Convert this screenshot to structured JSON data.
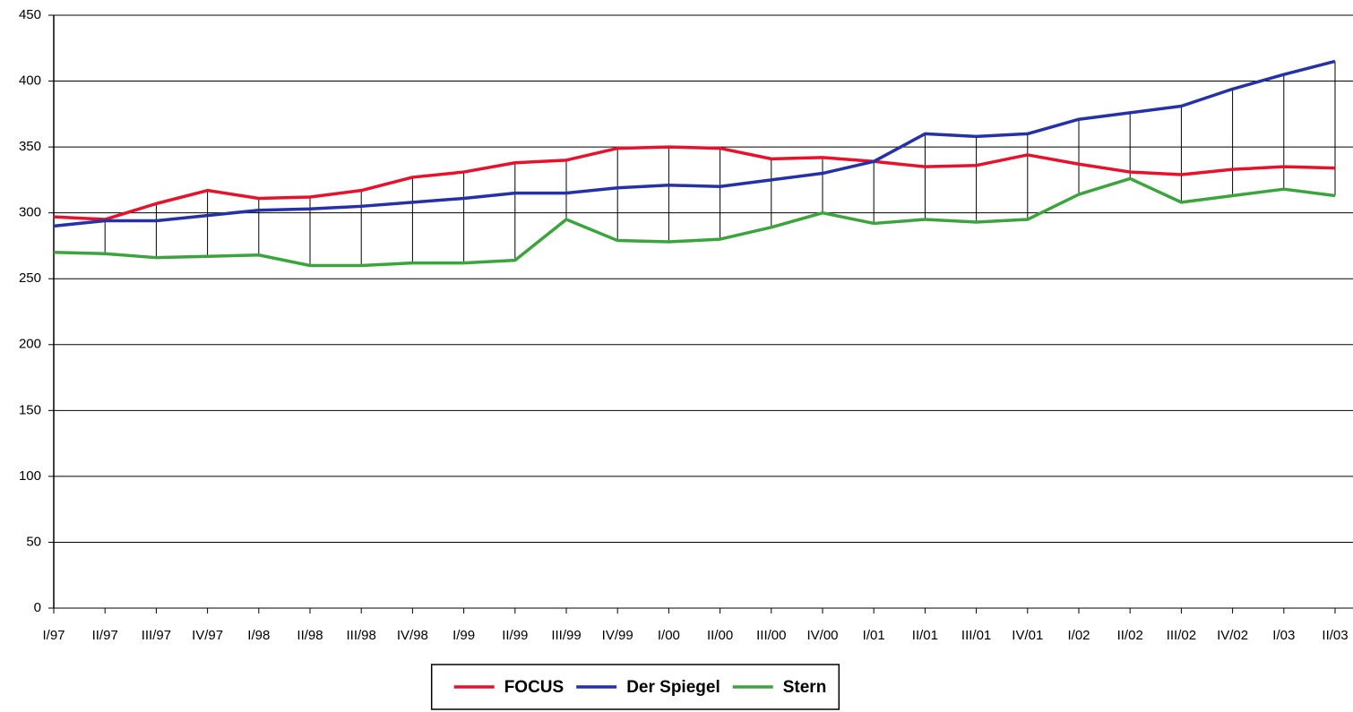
{
  "chart_data": {
    "type": "line",
    "categories": [
      "I/97",
      "II/97",
      "III/97",
      "IV/97",
      "I/98",
      "II/98",
      "III/98",
      "IV/98",
      "I/99",
      "II/99",
      "III/99",
      "IV/99",
      "I/00",
      "II/00",
      "III/00",
      "IV/00",
      "I/01",
      "II/01",
      "III/01",
      "IV/01",
      "I/02",
      "II/02",
      "III/02",
      "IV/02",
      "I/03",
      "II/03"
    ],
    "series": [
      {
        "name": "FOCUS",
        "color": "#e8102a",
        "values": [
          297,
          295,
          307,
          317,
          311,
          312,
          317,
          327,
          331,
          338,
          340,
          349,
          350,
          349,
          341,
          342,
          339,
          335,
          336,
          344,
          337,
          331,
          329,
          333,
          335,
          334
        ]
      },
      {
        "name": "Der Spiegel",
        "color": "#2431a8",
        "values": [
          290,
          294,
          294,
          298,
          302,
          303,
          305,
          308,
          311,
          315,
          315,
          319,
          321,
          320,
          325,
          330,
          339,
          360,
          358,
          360,
          371,
          376,
          381,
          394,
          405,
          415
        ]
      },
      {
        "name": "Stern",
        "color": "#3aa53a",
        "values": [
          270,
          269,
          266,
          267,
          268,
          260,
          260,
          262,
          262,
          264,
          295,
          279,
          278,
          280,
          289,
          300,
          292,
          295,
          293,
          295,
          314,
          326,
          308,
          313,
          318,
          313
        ]
      }
    ],
    "ylim": [
      0,
      450
    ],
    "yticks": [
      0,
      50,
      100,
      150,
      200,
      250,
      300,
      350,
      400,
      450
    ],
    "grid": true,
    "high_low_lines": true,
    "legend": "bottom"
  }
}
